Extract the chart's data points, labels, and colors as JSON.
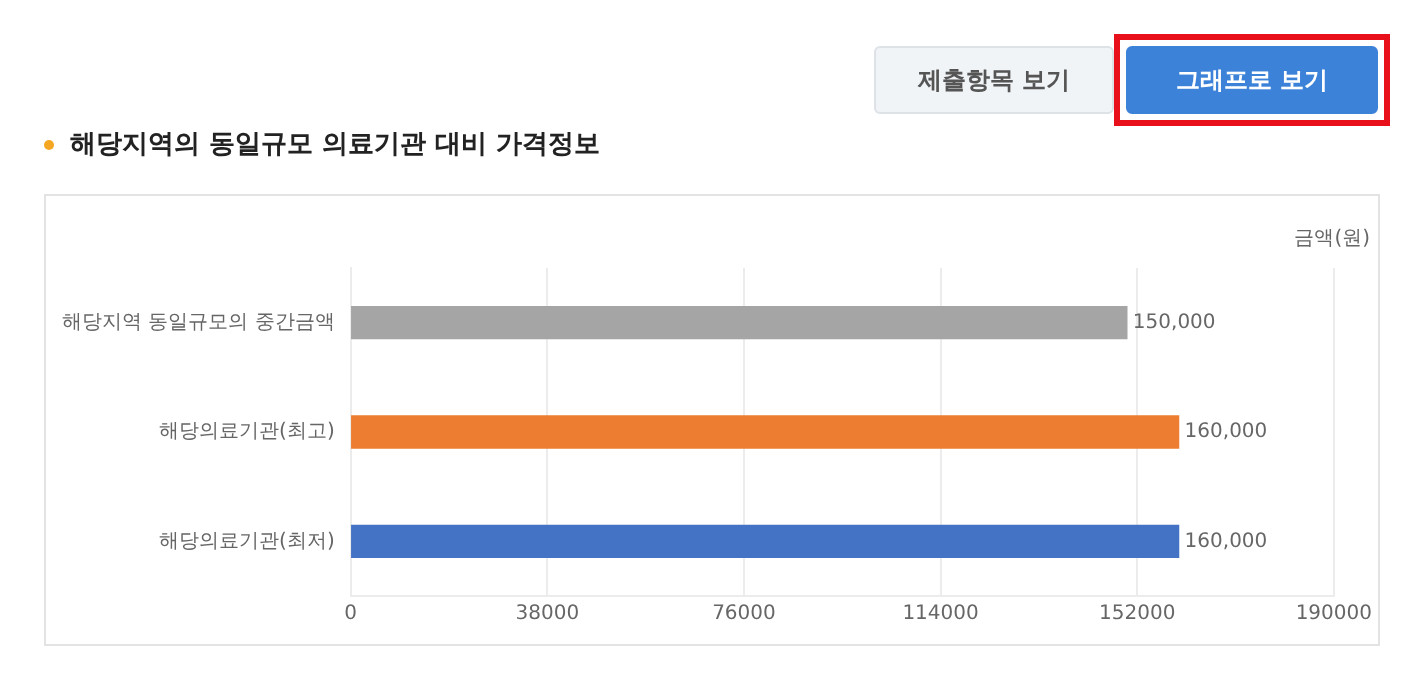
{
  "chart_data": {
    "type": "bar",
    "orientation": "horizontal",
    "title": "해당지역의 동일규모 의료기관 대비 가격정보",
    "xlabel": "금액(원)",
    "categories": [
      "해당지역 동일규모의 중간금액",
      "해당의료기관(최고)",
      "해당의료기관(최저)"
    ],
    "values": [
      150000,
      160000,
      160000
    ],
    "colors": [
      "#a5a5a5",
      "#ed7d31",
      "#4472c4"
    ],
    "value_labels": [
      "150,000",
      "160,000",
      "160,000"
    ],
    "xlim": [
      0,
      190000
    ],
    "xticks": [
      0,
      38000,
      76000,
      114000,
      152000,
      190000
    ],
    "grid": "x",
    "legend": false,
    "annotations": [
      "제출항목 보기",
      "그래프로 보기"
    ]
  }
}
